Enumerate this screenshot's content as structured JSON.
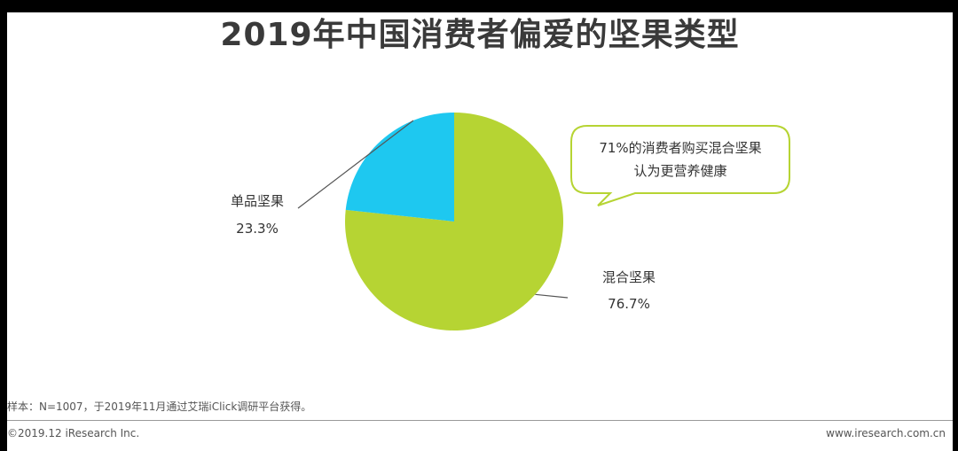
{
  "page": {
    "title": "2019年中国消费者偏爱的坚果类型"
  },
  "chart_data": {
    "type": "pie",
    "title": "2019年中国消费者偏爱的坚果类型",
    "slices": [
      {
        "label": "混合坚果",
        "value": 76.7,
        "display": "76.7%",
        "color": "#b6d433"
      },
      {
        "label": "单品坚果",
        "value": 23.3,
        "display": "23.3%",
        "color": "#1ec8f0"
      }
    ],
    "start_angle": "12 o'clock",
    "direction": "clockwise",
    "legend": "none",
    "label_style": "callout lines outside pie"
  },
  "callout": {
    "line1": "71%的消费者购买混合坚果",
    "line2": "认为更营养健康",
    "border_color": "#b6d433"
  },
  "footer": {
    "sample_note": "样本：N=1007，于2019年11月通过艾瑞iClick调研平台获得。",
    "copyright": "©2019.12 iResearch Inc.",
    "website": "www.iresearch.com.cn"
  }
}
